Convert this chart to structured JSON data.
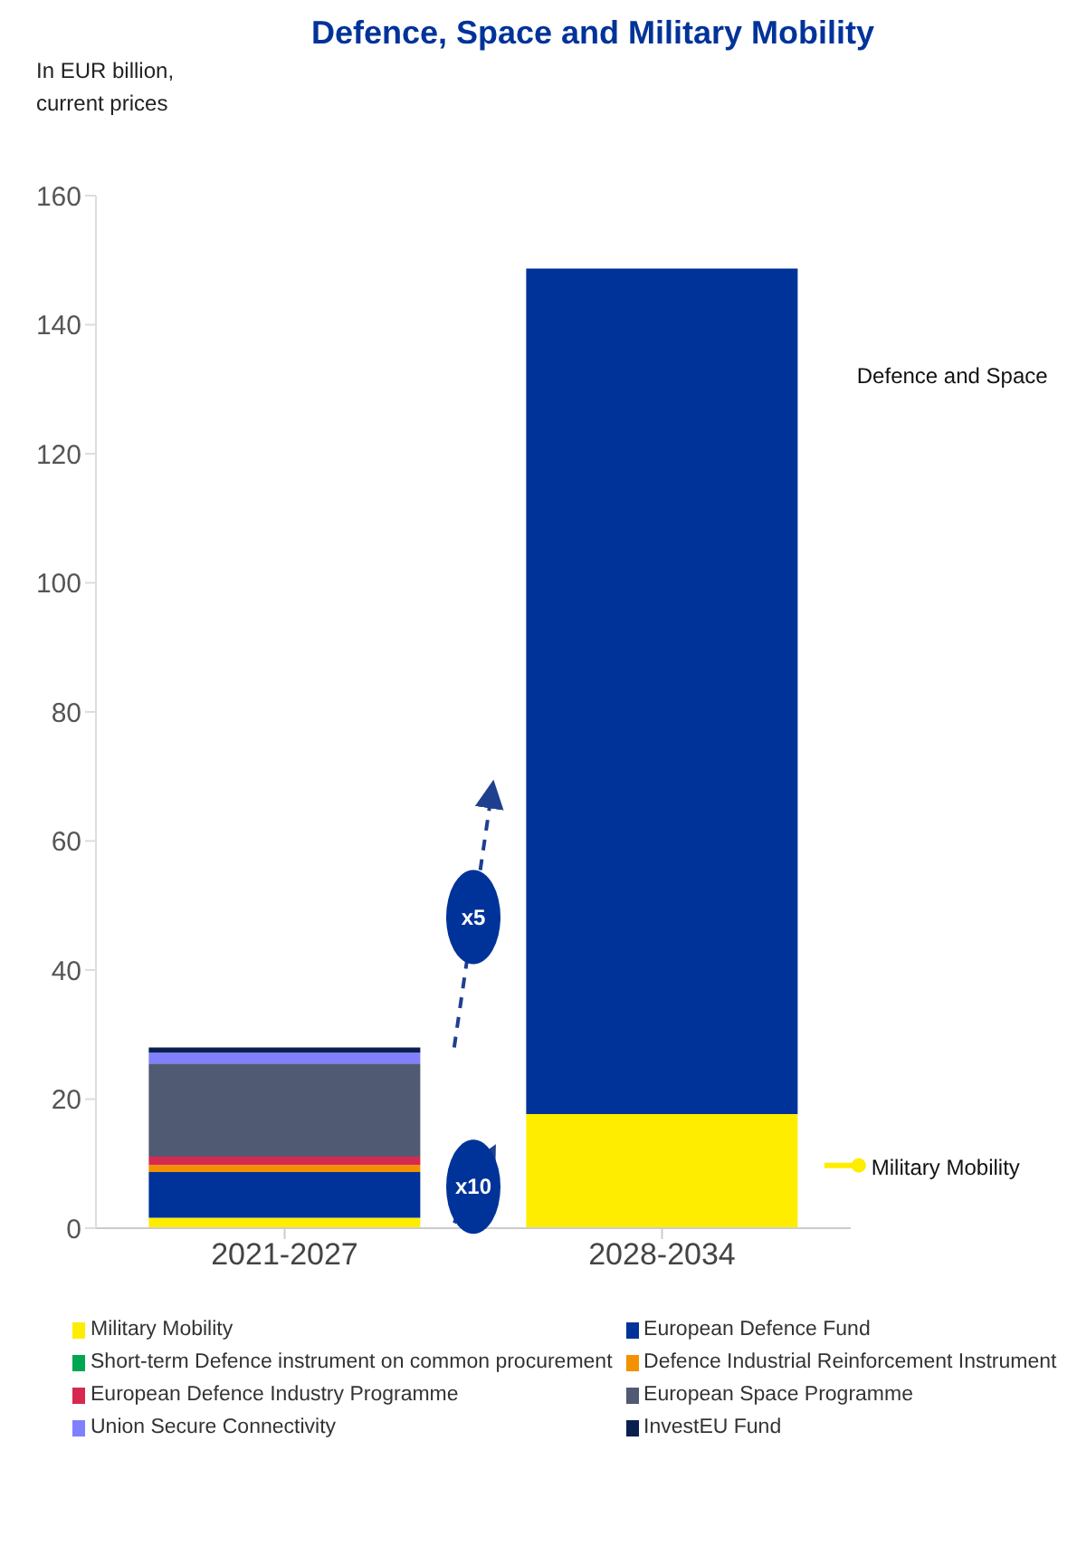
{
  "chart_data": {
    "type": "bar",
    "title": "Defence, Space and Military Mobility",
    "ylabel": "In EUR billion, current prices",
    "categories": [
      "2021-2027",
      "2028-2034"
    ],
    "stacked": true,
    "series": [
      {
        "name": "Military Mobility",
        "color": "#ffed00",
        "values": [
          1.6,
          17.7
        ]
      },
      {
        "name": "European Defence Fund",
        "color": "#003399",
        "values": [
          7.1,
          null
        ]
      },
      {
        "name": "Short-term Defence instrument on common procurement",
        "color": "#00a651",
        "values": [
          0,
          null
        ]
      },
      {
        "name": "Defence Industrial Reinforcement Instrument",
        "color": "#f39200",
        "values": [
          1.1,
          null
        ]
      },
      {
        "name": "European Defence Industry Programme",
        "color": "#d6294f",
        "values": [
          1.3,
          null
        ]
      },
      {
        "name": "European Space Programme",
        "color": "#515a73",
        "values": [
          14.4,
          null
        ]
      },
      {
        "name": "Union Secure Connectivity",
        "color": "#8080ff",
        "values": [
          1.7,
          null
        ]
      },
      {
        "name": "InvestEU Fund",
        "color": "#0b1f4f",
        "values": [
          0.8,
          null
        ]
      },
      {
        "color": "#003399",
        "values": [
          null,
          131
        ]
      }
    ],
    "ylim": [
      0,
      160
    ],
    "yticks": [
      0,
      20,
      40,
      60,
      80,
      100,
      120,
      140,
      160
    ],
    "legend": "bottom",
    "annotations": [
      "x5",
      "x10",
      "Defence and Space",
      "Military Mobility"
    ]
  }
}
